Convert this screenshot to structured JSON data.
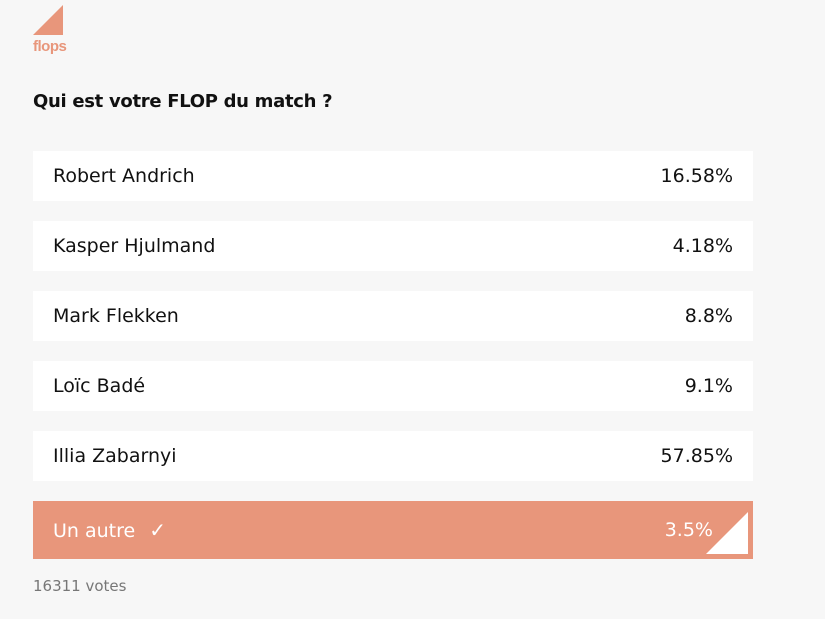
{
  "logo": {
    "text": "flops"
  },
  "question": "Qui est votre FLOP du match ?",
  "options": [
    {
      "name": "Robert Andrich",
      "pct": "16.58%"
    },
    {
      "name": "Kasper Hjulmand",
      "pct": "4.18%"
    },
    {
      "name": "Mark Flekken",
      "pct": "8.8%"
    },
    {
      "name": "Loïc Badé",
      "pct": "9.1%"
    },
    {
      "name": "Illia Zabarnyi",
      "pct": "57.85%"
    },
    {
      "name": "Un autre",
      "pct": "3.5%",
      "selected": true
    }
  ],
  "votes": "16311 votes",
  "colors": {
    "accent": "#e8967b"
  }
}
